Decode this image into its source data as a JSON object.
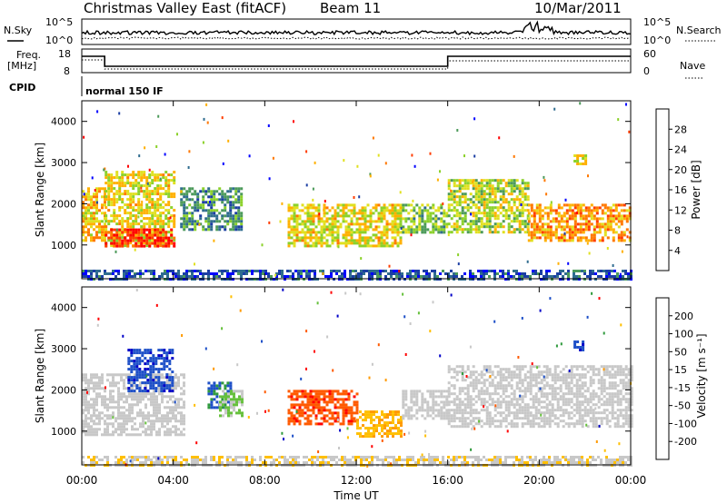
{
  "header": {
    "title": "Christmas Valley East (fitACF)",
    "beam": "Beam 11",
    "date": "10/Mar/2011"
  },
  "noise_panel": {
    "left_label": "N.Sky",
    "right_label": "N.Search",
    "left_ticks": [
      "10^5",
      "10^0"
    ],
    "right_ticks": [
      "10^5",
      "10^0"
    ]
  },
  "freq_panel": {
    "left_label_line1": "Freq.",
    "left_label_line2": "[MHz]",
    "right_label": "Nave",
    "left_ticks": [
      "18",
      "8"
    ],
    "right_ticks": [
      "60",
      "0"
    ]
  },
  "cpid": {
    "label": "CPID",
    "program": "normal 150 IF"
  },
  "chart_data": [
    {
      "type": "heatmap",
      "panel": "power",
      "ylabel": "Slant Range [km]",
      "xlabel": "",
      "x_ticks": [
        "00:00",
        "04:00",
        "08:00",
        "12:00",
        "16:00",
        "20:00",
        "00:00"
      ],
      "xlim_hours": [
        0,
        24
      ],
      "ylim": [
        180,
        4500
      ],
      "y_ticks": [
        1000,
        2000,
        3000,
        4000
      ],
      "colorbar_label": "Power [dB]",
      "colorbar_ticks": [
        "28",
        "24",
        "20",
        "16",
        "12",
        "8",
        "4"
      ],
      "colors": [
        "#0000ff",
        "#1b3ea3",
        "#2f6c8f",
        "#4c9a5a",
        "#8bd12a",
        "#e0e020",
        "#ffb000",
        "#ff7800",
        "#ff3c00",
        "#ff0000"
      ],
      "regions": [
        {
          "t": [
            0.0,
            1.0
          ],
          "r": [
            1100,
            2400
          ],
          "value": 20
        },
        {
          "t": [
            1.0,
            4.0
          ],
          "r": [
            1000,
            2800
          ],
          "value": 18
        },
        {
          "t": [
            1.0,
            4.0
          ],
          "r": [
            1000,
            1400
          ],
          "value": 28
        },
        {
          "t": [
            4.3,
            7.0
          ],
          "r": [
            1400,
            2400
          ],
          "value": 10
        },
        {
          "t": [
            9.0,
            14.0
          ],
          "r": [
            1000,
            2000
          ],
          "value": 18
        },
        {
          "t": [
            14.0,
            16.0
          ],
          "r": [
            1300,
            2000
          ],
          "value": 14
        },
        {
          "t": [
            16.0,
            19.5
          ],
          "r": [
            1300,
            2600
          ],
          "value": 16
        },
        {
          "t": [
            19.5,
            24.0
          ],
          "r": [
            1100,
            2000
          ],
          "value": 22
        },
        {
          "t": [
            21.5,
            22.0
          ],
          "r": [
            3000,
            3200
          ],
          "value": 18
        },
        {
          "t": [
            0.0,
            24.0
          ],
          "r": [
            200,
            400
          ],
          "value": 6
        }
      ]
    },
    {
      "type": "heatmap",
      "panel": "velocity",
      "ylabel": "Slant Range [km]",
      "xlabel": "Time UT",
      "x_ticks": [
        "00:00",
        "04:00",
        "08:00",
        "12:00",
        "16:00",
        "20:00",
        "00:00"
      ],
      "xlim_hours": [
        0,
        24
      ],
      "ylim": [
        180,
        4500
      ],
      "y_ticks": [
        1000,
        2000,
        3000,
        4000
      ],
      "colorbar_label": "Velocity [m s⁻¹]",
      "colorbar_ticks": [
        "200",
        "100",
        "50",
        "15",
        "-15",
        "-50",
        "-100",
        "-200"
      ],
      "colors": [
        "#ff0000",
        "#ff5a00",
        "#ff9a00",
        "#ffbf00",
        "#c8c8c8",
        "#c8c8c8",
        "#66c03c",
        "#2f9a3c",
        "#1e50c8",
        "#0000c8"
      ],
      "regions": [
        {
          "t": [
            0.0,
            4.5
          ],
          "r": [
            900,
            2400
          ],
          "value": 0
        },
        {
          "t": [
            2.0,
            4.0
          ],
          "r": [
            2000,
            3000
          ],
          "value": 180
        },
        {
          "t": [
            5.5,
            6.5
          ],
          "r": [
            1600,
            2200
          ],
          "value": 160
        },
        {
          "t": [
            6.0,
            7.0
          ],
          "r": [
            1400,
            2000
          ],
          "value": 60
        },
        {
          "t": [
            9.0,
            12.0
          ],
          "r": [
            1200,
            2000
          ],
          "value": -180
        },
        {
          "t": [
            12.0,
            14.0
          ],
          "r": [
            900,
            1500
          ],
          "value": -90
        },
        {
          "t": [
            14.0,
            16.0
          ],
          "r": [
            1300,
            2000
          ],
          "value": 0
        },
        {
          "t": [
            16.0,
            24.0
          ],
          "r": [
            1100,
            2600
          ],
          "value": 0
        },
        {
          "t": [
            21.5,
            22.0
          ],
          "r": [
            3000,
            3200
          ],
          "value": 180
        },
        {
          "t": [
            0.0,
            24.0
          ],
          "r": [
            200,
            400
          ],
          "value": -40
        }
      ]
    }
  ]
}
